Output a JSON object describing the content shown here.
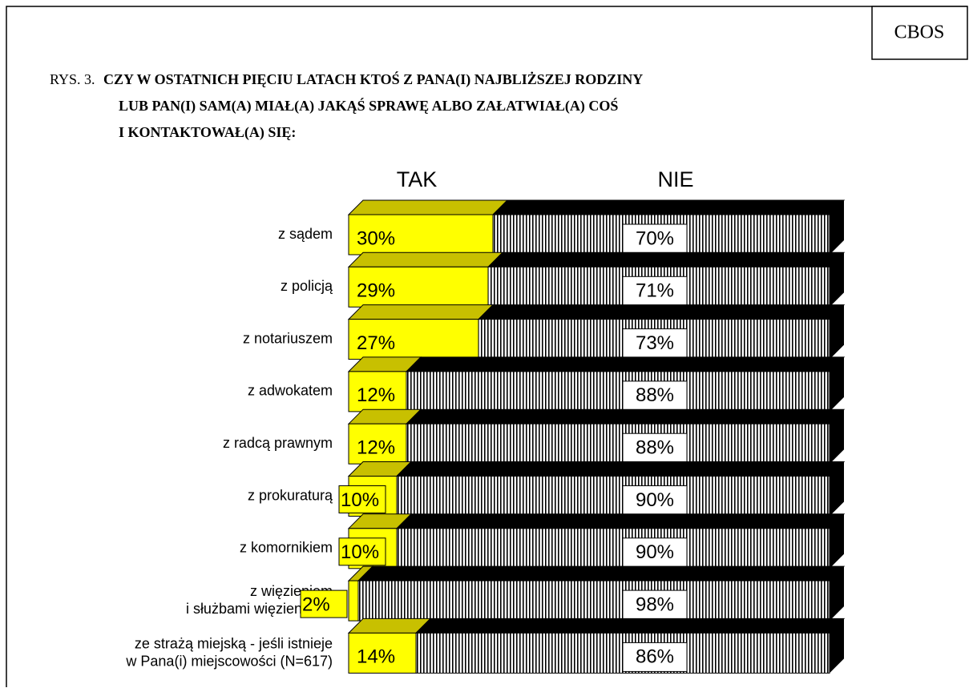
{
  "brand": "CBOS",
  "chart_data": {
    "type": "stacked-bar-3d",
    "figure_label": "RYS. 3.",
    "title_lines": [
      "CZY W OSTATNICH PIĘCIU LATACH KTOŚ Z PANA(I) NAJBLIŻSZEJ RODZINY",
      "LUB  PAN(I) SAM(A) MIAŁ(A) JAKĄŚ SPRAWĘ ALBO ZAŁATWIAŁ(A) COŚ",
      "I  KONTAKTOWAŁ(A) SIĘ:"
    ],
    "categories": [
      "z sądem",
      "z policją",
      "z notariuszem",
      "z adwokatem",
      "z radcą prawnym",
      "z prokuraturą",
      "z komornikiem",
      "z więzieniem\ni służbami więziennymi",
      "ze strażą miejską - jeśli istnieje\nw Pana(i) miejscowości (N=617)"
    ],
    "xlim": [
      0,
      100
    ],
    "series": [
      {
        "name": "TAK",
        "color": "#ffff00",
        "values": [
          30,
          29,
          27,
          12,
          12,
          10,
          10,
          2,
          14
        ],
        "value_labels": [
          "30%",
          "29%",
          "27%",
          "12%",
          "12%",
          "10%",
          "10%",
          "2%",
          "14%"
        ]
      },
      {
        "name": "NIE",
        "color": "#000000",
        "values": [
          70,
          71,
          73,
          88,
          88,
          90,
          90,
          98,
          86
        ],
        "value_labels": [
          "70%",
          "71%",
          "73%",
          "88%",
          "88%",
          "90%",
          "90%",
          "98%",
          "86%"
        ]
      }
    ]
  }
}
